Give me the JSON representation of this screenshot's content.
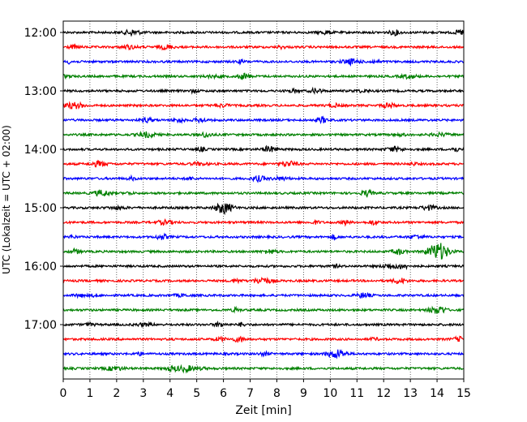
{
  "chart_data": {
    "type": "line",
    "title": "",
    "xlabel": "Zeit  [min]",
    "ylabel": "UTC (Lokalzeit = UTC + 02:00)",
    "xlim": [
      0,
      15
    ],
    "x_ticks": [
      "0",
      "1",
      "2",
      "3",
      "4",
      "5",
      "6",
      "7",
      "8",
      "9",
      "10",
      "11",
      "12",
      "13",
      "14",
      "15"
    ],
    "y_ticks": [
      "12:00",
      "13:00",
      "14:00",
      "15:00",
      "16:00",
      "17:00"
    ],
    "grid": "vertical dotted at each minute",
    "trace_interval_min": 15,
    "colors": [
      "#000000",
      "#ff0000",
      "#0000ff",
      "#008000"
    ],
    "traces": [
      {
        "start": "12:00",
        "color": "#000000"
      },
      {
        "start": "12:15",
        "color": "#ff0000"
      },
      {
        "start": "12:30",
        "color": "#0000ff"
      },
      {
        "start": "12:45",
        "color": "#008000"
      },
      {
        "start": "13:00",
        "color": "#000000"
      },
      {
        "start": "13:15",
        "color": "#ff0000"
      },
      {
        "start": "13:30",
        "color": "#0000ff"
      },
      {
        "start": "13:45",
        "color": "#008000"
      },
      {
        "start": "14:00",
        "color": "#000000"
      },
      {
        "start": "14:15",
        "color": "#ff0000"
      },
      {
        "start": "14:30",
        "color": "#0000ff"
      },
      {
        "start": "14:45",
        "color": "#008000"
      },
      {
        "start": "15:00",
        "color": "#000000"
      },
      {
        "start": "15:15",
        "color": "#ff0000"
      },
      {
        "start": "15:30",
        "color": "#0000ff"
      },
      {
        "start": "15:45",
        "color": "#008000",
        "event_min": 14.1
      },
      {
        "start": "16:00",
        "color": "#000000"
      },
      {
        "start": "16:15",
        "color": "#ff0000"
      },
      {
        "start": "16:30",
        "color": "#0000ff"
      },
      {
        "start": "16:45",
        "color": "#008000"
      },
      {
        "start": "17:00",
        "color": "#000000"
      },
      {
        "start": "17:15",
        "color": "#ff0000"
      },
      {
        "start": "17:30",
        "color": "#0000ff"
      },
      {
        "start": "17:45",
        "color": "#008000"
      }
    ]
  }
}
